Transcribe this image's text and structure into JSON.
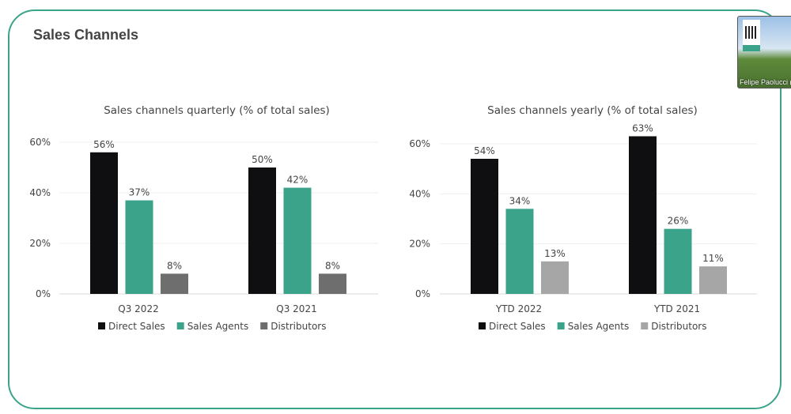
{
  "page_title": "Sales Channels",
  "video": {
    "participant_name": "Felipe Paolucci ("
  },
  "colors": {
    "border": "#3aa38a",
    "Direct Sales": "#0f0e10",
    "Sales Agents": "#3aa38a",
    "Distributors_quarterly": "#6e6e6e",
    "Distributors_yearly": "#a6a6a6"
  },
  "chart_data": [
    {
      "type": "bar",
      "title": "Sales channels quarterly (% of total sales)",
      "categories": [
        "Q3 2022",
        "Q3 2021"
      ],
      "series": [
        {
          "name": "Direct Sales",
          "values": [
            56,
            50
          ],
          "labels": [
            "56%",
            "50%"
          ]
        },
        {
          "name": "Sales Agents",
          "values": [
            37,
            42
          ],
          "labels": [
            "37%",
            "42%"
          ]
        },
        {
          "name": "Distributors",
          "values": [
            8,
            8
          ],
          "labels": [
            "8%",
            "8%"
          ]
        }
      ],
      "yticks": [
        "0%",
        "20%",
        "40%",
        "60%"
      ],
      "ylim": [
        0,
        60
      ],
      "grid": true,
      "legend": "bottom"
    },
    {
      "type": "bar",
      "title": "Sales channels yearly (% of total sales)",
      "categories": [
        "YTD 2022",
        "YTD 2021"
      ],
      "series": [
        {
          "name": "Direct Sales",
          "values": [
            54,
            63
          ],
          "labels": [
            "54%",
            "63%"
          ]
        },
        {
          "name": "Sales Agents",
          "values": [
            34,
            26
          ],
          "labels": [
            "34%",
            "26%"
          ]
        },
        {
          "name": "Distributors",
          "values": [
            13,
            11
          ],
          "labels": [
            "13%",
            "11%"
          ]
        }
      ],
      "yticks": [
        "0%",
        "20%",
        "40%",
        "60%"
      ],
      "ylim": [
        0,
        60
      ],
      "grid": true,
      "legend": "bottom"
    }
  ]
}
